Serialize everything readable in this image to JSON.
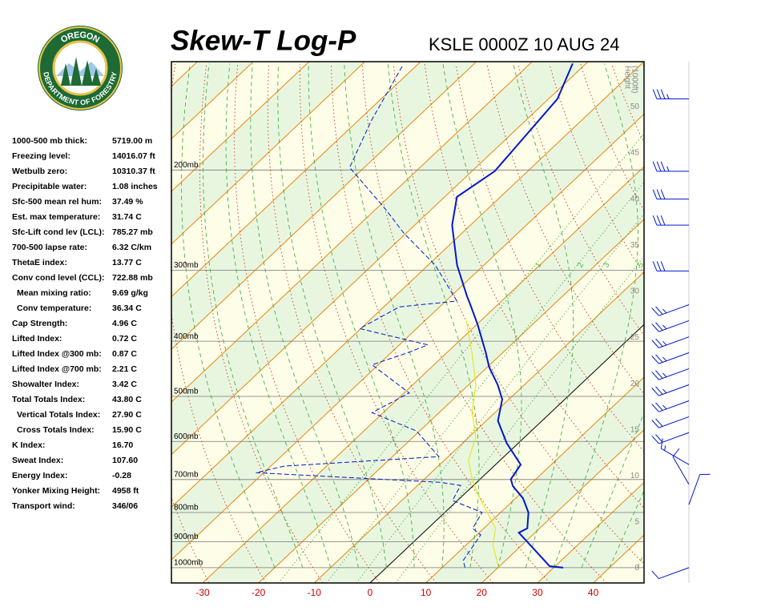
{
  "logo": {
    "top": "OREGON",
    "bottom": "DEPARTMENT OF FORESTRY"
  },
  "stats": [
    {
      "label": "1000-500 mb thick:",
      "value": "5719.00 m"
    },
    {
      "label": "Freezing level:",
      "value": "14016.07 ft"
    },
    {
      "label": "Wetbulb zero:",
      "value": "10310.37 ft"
    },
    {
      "label": "Precipitable water:",
      "value": "1.08 inches"
    },
    {
      "label": "Sfc-500 mean rel hum:",
      "value": "37.49 %"
    },
    {
      "label": "Est. max temperature:",
      "value": "31.74 C"
    },
    {
      "label": "Sfc-Lift cond lev (LCL):",
      "value": "785.27 mb"
    },
    {
      "label": "700-500 lapse rate:",
      "value": "6.32 C/km"
    },
    {
      "label": "ThetaE index:",
      "value": "13.77 C"
    },
    {
      "label": "Conv cond level (CCL):",
      "value": "722.88 mb"
    },
    {
      "label": "Mean mixing ratio:",
      "value": "9.69 g/kg"
    },
    {
      "label": "Conv temperature:",
      "value": "36.34 C"
    },
    {
      "label": "Cap Strength:",
      "value": "4.96 C"
    },
    {
      "label": "Lifted Index:",
      "value": "0.72 C"
    },
    {
      "label": "Lifted Index @300 mb:",
      "value": "0.87 C"
    },
    {
      "label": "Lifted Index @700 mb:",
      "value": "2.21 C"
    },
    {
      "label": "Showalter Index:",
      "value": "3.42 C"
    },
    {
      "label": "Total Totals Index:",
      "value": "43.80 C"
    },
    {
      "label": "Vertical Totals Index:",
      "value": "27.90 C"
    },
    {
      "label": "Cross Totals Index:",
      "value": "15.90 C"
    },
    {
      "label": "K Index:",
      "value": "16.70"
    },
    {
      "label": "Sweat Index:",
      "value": "107.60"
    },
    {
      "label": "Energy Index:",
      "value": "-0.28"
    },
    {
      "label": "Yonker Mixing Height:",
      "value": "4958 ft"
    },
    {
      "label": "Transport wind:",
      "value": "346/06"
    }
  ],
  "chart_data": {
    "type": "skewt",
    "title": "Skew-T Log-P",
    "subtitle": "KSLE 0000Z 10 AUG 24",
    "xlim": [
      -35.6,
      49.1
    ],
    "xticks": [
      -30,
      -20,
      -10,
      0,
      10,
      20,
      30,
      40
    ],
    "ylim": [
      1064,
      129
    ],
    "log_y": true,
    "yticks": [
      {
        "value": 1000,
        "label": "1000mb"
      },
      {
        "value": 900,
        "label": "900mb"
      },
      {
        "value": 800,
        "label": "800mb"
      },
      {
        "value": 700,
        "label": "700mb"
      },
      {
        "value": 600,
        "label": "600mb"
      },
      {
        "value": 500,
        "label": "500mb"
      },
      {
        "value": 400,
        "label": "400mb"
      },
      {
        "value": 300,
        "label": "300mb"
      },
      {
        "value": 200,
        "label": "200mb"
      }
    ],
    "y2label": [
      "Height",
      "(1000ft)"
    ],
    "y2lim": [
      -1.6,
      54.9
    ],
    "y2ticks": [
      0,
      5,
      10,
      15,
      20,
      25,
      30,
      35,
      40,
      45,
      50
    ],
    "mixing_ratios": [
      1,
      2,
      3,
      5
    ],
    "series": [
      {
        "color": "#0018cc",
        "dashed": false,
        "width": 2,
        "p": [
          1000,
          994,
          868,
          853,
          800,
          755,
          719,
          699,
          659,
          604,
          552,
          506,
          477,
          444,
          419,
          374,
          345,
          334,
          294,
          250,
          223,
          201,
          150,
          130
        ],
        "values": [
          31.7,
          29.0,
          17.1,
          17.8,
          15.0,
          11.3,
          7.2,
          5.5,
          4.5,
          -2.1,
          -7.9,
          -11.2,
          -14.8,
          -19.7,
          -23.0,
          -29.8,
          -34.9,
          -37.0,
          -44.8,
          -53.3,
          -57.8,
          -55.9,
          -58.4,
          -62.4
        ]
      },
      {
        "color": "#0018cc",
        "dashed": true,
        "width": 1,
        "p": [
          1000,
          971,
          876,
          853,
          800,
          762,
          717,
          708,
          681,
          663,
          638,
          575,
          534,
          493,
          440,
          419,
          406,
          380,
          348,
          340,
          294,
          258,
          234,
          198,
          164,
          131
        ],
        "values": [
          14.1,
          12.4,
          10.7,
          8.0,
          6.7,
          -0.9,
          -2.3,
          -6.6,
          -41.4,
          -37.6,
          -11.7,
          -20.6,
          -32.0,
          -29.1,
          -41.1,
          -37.0,
          -34.9,
          -50.2,
          -47.2,
          -38.0,
          -48.7,
          -60.5,
          -68.4,
          -82.6,
          -87.6,
          -92.5
        ]
      },
      {
        "color": "#e6e600",
        "dashed": false,
        "width": 1,
        "p": [
          1000,
          911,
          853,
          750,
          703,
          649,
          589,
          534,
          477,
          419,
          368
        ],
        "values": [
          20.1,
          14.7,
          12.1,
          3.1,
          -1.1,
          -5.6,
          -8.8,
          -14.1,
          -18.7,
          -25.5,
          -32.6
        ]
      }
    ],
    "winds": {
      "color": "#0018cc",
      "p": [
        150,
        201,
        225,
        250,
        301,
        345,
        368,
        393,
        419,
        447,
        477,
        509,
        543,
        579,
        659,
        714,
        775,
        1000
      ],
      "direction": [
        270,
        270,
        270,
        270,
        270,
        250,
        250,
        250,
        250,
        250,
        250,
        250,
        250,
        250,
        300,
        330,
        20,
        250
      ],
      "speed": [
        35,
        35,
        30,
        30,
        30,
        25,
        25,
        25,
        25,
        25,
        25,
        25,
        20,
        20,
        15,
        10,
        10,
        10
      ]
    }
  }
}
